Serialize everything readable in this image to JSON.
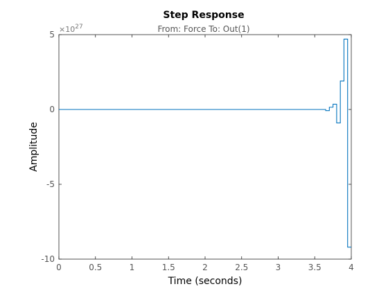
{
  "chart_data": {
    "type": "line",
    "step": true,
    "title": "Step Response",
    "subtitle": "From: Force  To: Out(1)",
    "xlabel": "Time (seconds)",
    "ylabel": "Amplitude",
    "exponent_label": "×10^27",
    "exponent_base": "×10",
    "exponent_power": "27",
    "xlim": [
      0,
      4
    ],
    "ylim": [
      -10,
      5
    ],
    "x_ticks": [
      "0",
      "0.5",
      "1",
      "1.5",
      "2",
      "2.5",
      "3",
      "3.5",
      "4"
    ],
    "y_ticks": [
      "5",
      "0",
      "-5",
      "-10"
    ],
    "x_tick_values": [
      0,
      0.5,
      1,
      1.5,
      2,
      2.5,
      3,
      3.5,
      4
    ],
    "y_tick_values": [
      5,
      0,
      -5,
      -10
    ],
    "grid": false,
    "line_color": "#0072bd",
    "series": [
      {
        "x": [
          0,
          3.6,
          3.65,
          3.7,
          3.75,
          3.8,
          3.85,
          3.9,
          3.95,
          4.0
        ],
        "y": [
          0,
          0,
          -0.08,
          0.15,
          0.35,
          -0.9,
          1.9,
          4.7,
          -9.2,
          -9.2
        ]
      }
    ]
  }
}
